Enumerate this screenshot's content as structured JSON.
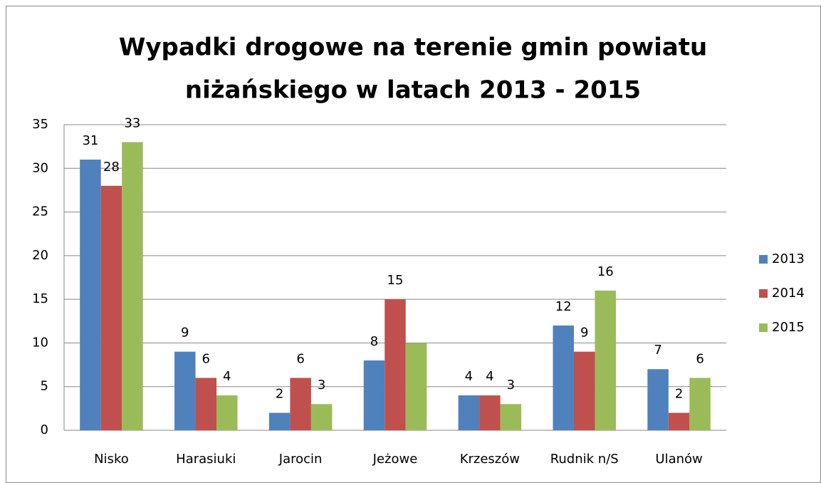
{
  "chart_data": {
    "type": "bar",
    "title": [
      "Wypadki drogowe na terenie gmin powiatu",
      "niżańskiego w latach 2013 - 2015"
    ],
    "categories": [
      "Nisko",
      "Harasiuki",
      "Jarocin",
      "Jeżowe",
      "Krzeszów",
      "Rudnik n/S",
      "Ulanów"
    ],
    "series": [
      {
        "name": "2013",
        "color": "#4f81bd",
        "values": [
          31,
          9,
          2,
          8,
          4,
          12,
          7
        ]
      },
      {
        "name": "2014",
        "color": "#c0504d",
        "values": [
          28,
          6,
          6,
          15,
          4,
          9,
          2
        ]
      },
      {
        "name": "2015",
        "color": "#9bbb59",
        "values": [
          33,
          4,
          3,
          10,
          3,
          16,
          6
        ],
        "value_labels": [
          "33",
          "4",
          "3",
          null,
          "3",
          "16",
          "6"
        ]
      }
    ],
    "ylim": [
      0,
      35
    ],
    "yticks": [
      0,
      5,
      10,
      15,
      20,
      25,
      30,
      35
    ],
    "grid": true,
    "legend": "right"
  }
}
